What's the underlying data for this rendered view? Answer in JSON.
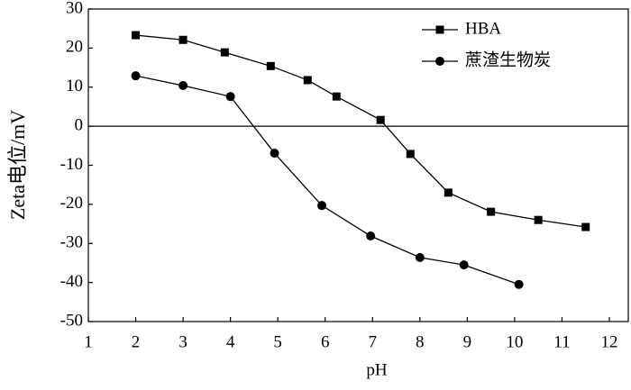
{
  "chart_data": {
    "type": "line",
    "x_label": "pH",
    "y_label": "Zeta电位/mV",
    "xlim": [
      1,
      12.4
    ],
    "xticks": [
      1,
      2,
      3,
      4,
      5,
      6,
      7,
      8,
      9,
      10,
      11,
      12
    ],
    "ylim": [
      -50,
      30
    ],
    "yticks": [
      -50,
      -40,
      -30,
      -20,
      -10,
      0,
      10,
      20,
      30
    ],
    "zero_line": true,
    "legend": "upper right",
    "series": [
      {
        "name": "HBA",
        "color": "#000000",
        "marker": "square",
        "x": [
          2,
          3,
          3.88,
          4.85,
          5.63,
          6.24,
          7.17,
          7.8,
          8.6,
          9.5,
          10.5,
          11.5
        ],
        "values": [
          23.3,
          22.1,
          18.9,
          15.4,
          11.8,
          7.6,
          1.6,
          -7.1,
          -17,
          -21.9,
          -24,
          -25.8
        ]
      },
      {
        "name": "蔗渣生物炭",
        "color": "#000000",
        "marker": "circle",
        "x": [
          2,
          3,
          4,
          4.93,
          5.93,
          6.96,
          8,
          8.93,
          10.09
        ],
        "values": [
          12.9,
          10.4,
          7.6,
          -6.9,
          -20.3,
          -28.1,
          -33.6,
          -35.5,
          -40.5
        ]
      }
    ]
  }
}
